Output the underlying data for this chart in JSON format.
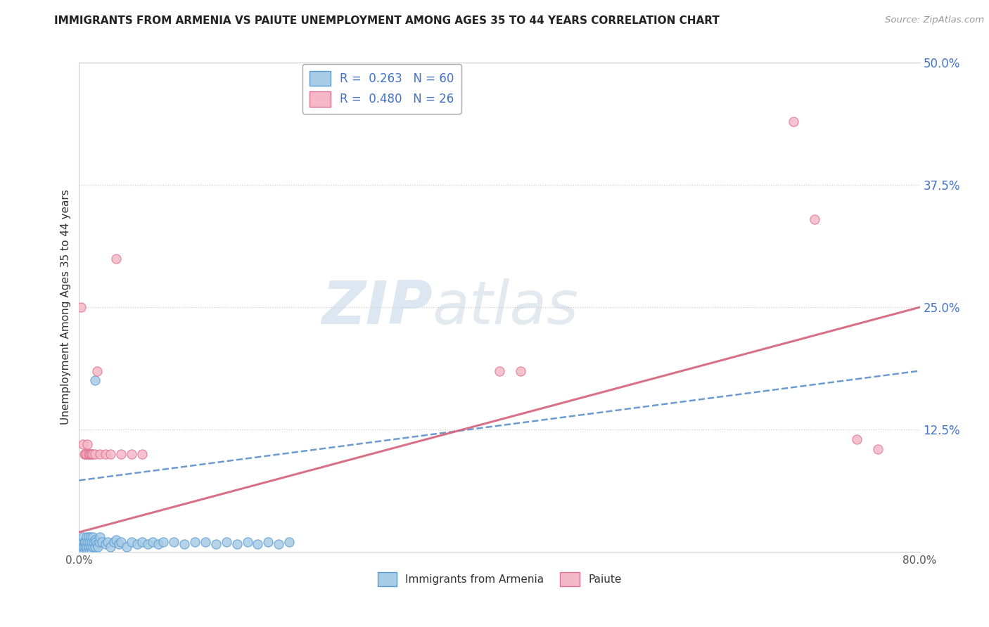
{
  "title": "IMMIGRANTS FROM ARMENIA VS PAIUTE UNEMPLOYMENT AMONG AGES 35 TO 44 YEARS CORRELATION CHART",
  "source": "Source: ZipAtlas.com",
  "ylabel": "Unemployment Among Ages 35 to 44 years",
  "xlim": [
    0.0,
    0.8
  ],
  "ylim": [
    0.0,
    0.5
  ],
  "xticks": [
    0.0,
    0.1,
    0.2,
    0.3,
    0.4,
    0.5,
    0.6,
    0.7,
    0.8
  ],
  "yticks": [
    0.0,
    0.125,
    0.25,
    0.375,
    0.5
  ],
  "xticklabels": [
    "0.0%",
    "",
    "",
    "",
    "",
    "",
    "",
    "",
    "80.0%"
  ],
  "yticklabels": [
    "",
    "12.5%",
    "25.0%",
    "37.5%",
    "50.0%"
  ],
  "legend1_label": "R =  0.263   N = 60",
  "legend2_label": "R =  0.480   N = 26",
  "legend_bottom_label1": "Immigrants from Armenia",
  "legend_bottom_label2": "Paiute",
  "blue_color": "#a8cce4",
  "pink_color": "#f4b8c8",
  "blue_edge_color": "#5b9bd5",
  "pink_edge_color": "#e07090",
  "blue_line_color": "#3a7abf",
  "pink_line_color": "#d4607a",
  "watermark_zip": "ZIP",
  "watermark_atlas": "atlas",
  "blue_scatter_x": [
    0.002,
    0.003,
    0.003,
    0.004,
    0.004,
    0.005,
    0.005,
    0.006,
    0.006,
    0.007,
    0.007,
    0.008,
    0.008,
    0.009,
    0.009,
    0.01,
    0.01,
    0.011,
    0.011,
    0.012,
    0.012,
    0.013,
    0.013,
    0.014,
    0.015,
    0.015,
    0.016,
    0.017,
    0.018,
    0.019,
    0.02,
    0.022,
    0.025,
    0.027,
    0.03,
    0.033,
    0.035,
    0.038,
    0.04,
    0.045,
    0.05,
    0.055,
    0.06,
    0.065,
    0.07,
    0.075,
    0.08,
    0.09,
    0.1,
    0.11,
    0.12,
    0.13,
    0.14,
    0.15,
    0.16,
    0.17,
    0.18,
    0.19,
    0.2,
    0.015
  ],
  "blue_scatter_y": [
    0.005,
    0.01,
    0.0,
    0.005,
    0.015,
    0.01,
    0.0,
    0.005,
    0.01,
    0.015,
    0.005,
    0.0,
    0.01,
    0.005,
    0.015,
    0.01,
    0.0,
    0.005,
    0.015,
    0.01,
    0.0,
    0.005,
    0.015,
    0.01,
    0.005,
    0.012,
    0.01,
    0.008,
    0.005,
    0.01,
    0.015,
    0.01,
    0.008,
    0.01,
    0.005,
    0.01,
    0.012,
    0.008,
    0.01,
    0.005,
    0.01,
    0.008,
    0.01,
    0.008,
    0.01,
    0.008,
    0.01,
    0.01,
    0.008,
    0.01,
    0.01,
    0.008,
    0.01,
    0.008,
    0.01,
    0.008,
    0.01,
    0.008,
    0.01,
    0.175
  ],
  "pink_scatter_x": [
    0.002,
    0.004,
    0.005,
    0.006,
    0.007,
    0.008,
    0.009,
    0.01,
    0.011,
    0.012,
    0.013,
    0.015,
    0.017,
    0.02,
    0.025,
    0.03,
    0.035,
    0.04,
    0.05,
    0.06,
    0.4,
    0.42,
    0.68,
    0.7,
    0.74,
    0.76
  ],
  "pink_scatter_y": [
    0.25,
    0.11,
    0.1,
    0.1,
    0.1,
    0.11,
    0.1,
    0.1,
    0.1,
    0.1,
    0.1,
    0.1,
    0.185,
    0.1,
    0.1,
    0.1,
    0.3,
    0.1,
    0.1,
    0.1,
    0.185,
    0.185,
    0.44,
    0.34,
    0.115,
    0.105
  ],
  "blue_trendline_x": [
    0.0,
    0.8
  ],
  "blue_trendline_y": [
    0.073,
    0.185
  ],
  "pink_trendline_x": [
    0.0,
    0.8
  ],
  "pink_trendline_y": [
    0.02,
    0.25
  ]
}
